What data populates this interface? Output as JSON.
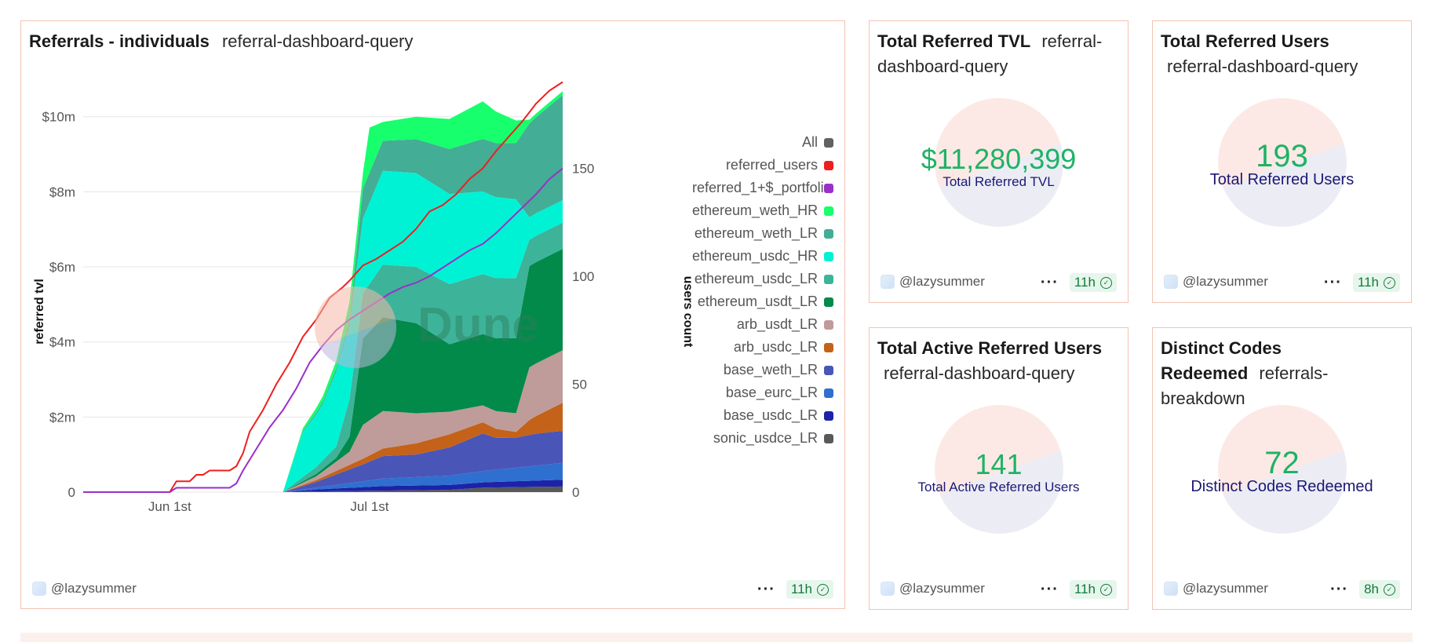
{
  "main_chart": {
    "title": "Referrals - individuals",
    "query": "referral-dashboard-query",
    "user": "@lazysummer",
    "age": "11h",
    "watermark": "Dune"
  },
  "colors": {
    "border": "#f4c2b3",
    "counter_value": "#1fb266",
    "counter_label": "#1b1874",
    "badge_bg": "#e7f6ec",
    "badge_text": "#127a3c"
  },
  "chart_data": {
    "type": "area",
    "stacked": true,
    "title": "",
    "xlabel": "",
    "ylabel": "referred tvl",
    "y2label": "users count",
    "x_ticks": [
      {
        "label": "Jun 1st",
        "i": 13
      },
      {
        "label": "Jul 1st",
        "i": 43
      }
    ],
    "y_ticks": [
      {
        "value": 0,
        "label": "0"
      },
      {
        "value": 2,
        "label": "$2m"
      },
      {
        "value": 4,
        "label": "$4m"
      },
      {
        "value": 6,
        "label": "$6m"
      },
      {
        "value": 8,
        "label": "$8m"
      },
      {
        "value": 10,
        "label": "$10m"
      }
    ],
    "y2_ticks": [
      0,
      50,
      100,
      150
    ],
    "ylim": [
      0,
      11.5
    ],
    "y2lim": [
      0,
      200
    ],
    "x_points": 73,
    "legend_header": {
      "name": "All",
      "color": "#616161"
    },
    "series": [
      {
        "name": "sonic_usdce_LR",
        "color": "#595959",
        "anchors": [
          [
            30,
            0
          ],
          [
            35,
            0.02
          ],
          [
            45,
            0.04
          ],
          [
            55,
            0.06
          ],
          [
            60,
            0.12
          ],
          [
            72,
            0.15
          ]
        ]
      },
      {
        "name": "base_usdc_LR",
        "color": "#1c23a8",
        "anchors": [
          [
            30,
            0
          ],
          [
            35,
            0.05
          ],
          [
            45,
            0.12
          ],
          [
            55,
            0.13
          ],
          [
            60,
            0.14
          ],
          [
            72,
            0.18
          ]
        ]
      },
      {
        "name": "base_eurc_LR",
        "color": "#2f6fd0",
        "anchors": [
          [
            30,
            0
          ],
          [
            35,
            0.05
          ],
          [
            45,
            0.2
          ],
          [
            55,
            0.25
          ],
          [
            60,
            0.3
          ],
          [
            72,
            0.45
          ]
        ]
      },
      {
        "name": "base_weth_LR",
        "color": "#4a55b8",
        "anchors": [
          [
            30,
            0
          ],
          [
            35,
            0.15
          ],
          [
            42,
            0.45
          ],
          [
            45,
            0.6
          ],
          [
            50,
            0.6
          ],
          [
            55,
            0.75
          ],
          [
            60,
            1.0
          ],
          [
            62,
            0.85
          ],
          [
            65,
            0.8
          ],
          [
            68,
            0.85
          ],
          [
            72,
            0.85
          ]
        ]
      },
      {
        "name": "arb_usdc_LR",
        "color": "#c4621a",
        "anchors": [
          [
            30,
            0
          ],
          [
            35,
            0.05
          ],
          [
            42,
            0.15
          ],
          [
            45,
            0.2
          ],
          [
            50,
            0.3
          ],
          [
            55,
            0.35
          ],
          [
            60,
            0.3
          ],
          [
            65,
            0.15
          ],
          [
            67,
            0.4
          ],
          [
            72,
            0.75
          ]
        ]
      },
      {
        "name": "arb_usdt_LR",
        "color": "#bf9c99",
        "anchors": [
          [
            30,
            0
          ],
          [
            35,
            0.1
          ],
          [
            40,
            0.35
          ],
          [
            42,
            0.9
          ],
          [
            45,
            1.0
          ],
          [
            50,
            0.8
          ],
          [
            55,
            0.6
          ],
          [
            60,
            0.45
          ],
          [
            65,
            0.5
          ],
          [
            67,
            1.4
          ],
          [
            72,
            1.4
          ]
        ]
      },
      {
        "name": "ethereum_usdt_LR",
        "color": "#028a4b",
        "anchors": [
          [
            30,
            0
          ],
          [
            38,
            0.1
          ],
          [
            40,
            0.4
          ],
          [
            42,
            2.3
          ],
          [
            45,
            2.5
          ],
          [
            50,
            2.4
          ],
          [
            55,
            1.8
          ],
          [
            60,
            1.9
          ],
          [
            65,
            2.0
          ],
          [
            67,
            2.7
          ],
          [
            72,
            2.7
          ]
        ]
      },
      {
        "name": "ethereum_usdc_LR",
        "color": "#3db39a",
        "anchors": [
          [
            30,
            0
          ],
          [
            38,
            0.3
          ],
          [
            40,
            1.0
          ],
          [
            42,
            1.2
          ],
          [
            45,
            1.4
          ],
          [
            50,
            1.5
          ],
          [
            55,
            1.6
          ],
          [
            60,
            1.6
          ],
          [
            65,
            1.6
          ],
          [
            67,
            0.7
          ],
          [
            72,
            0.7
          ]
        ]
      },
      {
        "name": "ethereum_usdc_HR",
        "color": "#00f2d5",
        "anchors": [
          [
            30,
            0
          ],
          [
            33,
            1.2
          ],
          [
            36,
            1.5
          ],
          [
            38,
            2.0
          ],
          [
            40,
            2.0
          ],
          [
            42,
            2.0
          ],
          [
            45,
            2.5
          ],
          [
            50,
            2.5
          ],
          [
            55,
            2.4
          ],
          [
            60,
            2.2
          ],
          [
            65,
            2.1
          ],
          [
            67,
            0.6
          ],
          [
            72,
            0.6
          ]
        ]
      },
      {
        "name": "ethereum_weth_LR",
        "color": "#43ad95",
        "anchors": [
          [
            30,
            0
          ],
          [
            40,
            0.1
          ],
          [
            42,
            0.8
          ],
          [
            45,
            0.8
          ],
          [
            50,
            0.9
          ],
          [
            55,
            1.2
          ],
          [
            60,
            1.4
          ],
          [
            65,
            1.5
          ],
          [
            67,
            2.5
          ],
          [
            72,
            2.8
          ]
        ]
      },
      {
        "name": "ethereum_weth_HR",
        "color": "#17ff6d",
        "anchors": [
          [
            30,
            0
          ],
          [
            38,
            0.2
          ],
          [
            40,
            0.5
          ],
          [
            42,
            0.4
          ],
          [
            43,
            1.2
          ],
          [
            45,
            0.5
          ],
          [
            50,
            0.6
          ],
          [
            55,
            0.8
          ],
          [
            60,
            1.0
          ],
          [
            65,
            0.6
          ],
          [
            67,
            0.1
          ],
          [
            72,
            0.1
          ]
        ]
      }
    ],
    "lines": [
      {
        "name": "referred_users",
        "color": "#ee1f1f",
        "axis": "y2",
        "points": [
          [
            0,
            0
          ],
          [
            13,
            0
          ],
          [
            14,
            5
          ],
          [
            16,
            5
          ],
          [
            17,
            8
          ],
          [
            18,
            8
          ],
          [
            19,
            10
          ],
          [
            22,
            10
          ],
          [
            23,
            12
          ],
          [
            24,
            18
          ],
          [
            25,
            28
          ],
          [
            27,
            38
          ],
          [
            29,
            50
          ],
          [
            31,
            60
          ],
          [
            33,
            72
          ],
          [
            35,
            80
          ],
          [
            37,
            90
          ],
          [
            39,
            95
          ],
          [
            40,
            98
          ],
          [
            42,
            105
          ],
          [
            44,
            108
          ],
          [
            46,
            112
          ],
          [
            48,
            116
          ],
          [
            50,
            122
          ],
          [
            52,
            130
          ],
          [
            54,
            133
          ],
          [
            56,
            138
          ],
          [
            58,
            145
          ],
          [
            60,
            150
          ],
          [
            62,
            158
          ],
          [
            64,
            165
          ],
          [
            66,
            172
          ],
          [
            68,
            180
          ],
          [
            70,
            186
          ],
          [
            72,
            190
          ]
        ]
      },
      {
        "name": "referred_1+$_portfolio",
        "color": "#9b2fc9",
        "axis": "y2",
        "points": [
          [
            0,
            0
          ],
          [
            13,
            0
          ],
          [
            14,
            2
          ],
          [
            16,
            2
          ],
          [
            18,
            2
          ],
          [
            20,
            2
          ],
          [
            22,
            2
          ],
          [
            23,
            4
          ],
          [
            24,
            10
          ],
          [
            26,
            20
          ],
          [
            28,
            30
          ],
          [
            30,
            38
          ],
          [
            32,
            48
          ],
          [
            34,
            60
          ],
          [
            36,
            68
          ],
          [
            38,
            75
          ],
          [
            40,
            80
          ],
          [
            42,
            84
          ],
          [
            44,
            88
          ],
          [
            46,
            92
          ],
          [
            48,
            95
          ],
          [
            50,
            97
          ],
          [
            52,
            100
          ],
          [
            54,
            104
          ],
          [
            56,
            108
          ],
          [
            58,
            112
          ],
          [
            60,
            115
          ],
          [
            62,
            120
          ],
          [
            64,
            126
          ],
          [
            66,
            132
          ],
          [
            68,
            138
          ],
          [
            70,
            145
          ],
          [
            72,
            150
          ]
        ]
      }
    ],
    "legend": [
      "referred_users",
      "referred_1+$_portfolio",
      "ethereum_weth_HR",
      "ethereum_weth_LR",
      "ethereum_usdc_HR",
      "ethereum_usdc_LR",
      "ethereum_usdt_LR",
      "arb_usdt_LR",
      "arb_usdc_LR",
      "base_weth_LR",
      "base_eurc_LR",
      "base_usdc_LR",
      "sonic_usdce_LR"
    ]
  },
  "counters": [
    {
      "title": "Total Referred TVL",
      "query": "referral-dashboard-query",
      "value": "$11,280,399",
      "label": "Total Referred TVL",
      "user": "@lazysummer",
      "age": "11h"
    },
    {
      "title": "Total Referred Users",
      "query": "referral-dashboard-query",
      "value": "193",
      "label": "Total Referred Users",
      "user": "@lazysummer",
      "age": "11h"
    },
    {
      "title": "Total Active Referred Users",
      "query": "referral-dashboard-query",
      "value": "141",
      "label": "Total Active Referred Users",
      "user": "@lazysummer",
      "age": "11h"
    },
    {
      "title": "Distinct Codes Redeemed",
      "query": "referrals-breakdown",
      "value": "72",
      "label": "Distinct Codes Redeemed",
      "user": "@lazysummer",
      "age": "8h"
    }
  ]
}
